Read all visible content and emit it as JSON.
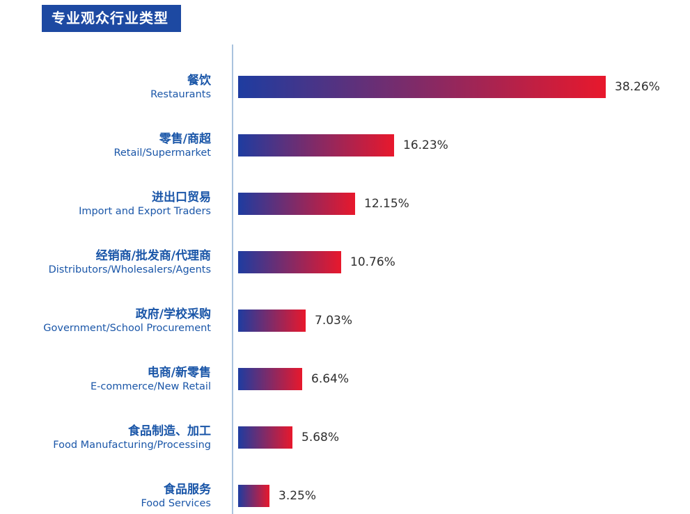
{
  "page": {
    "title": "专业观众行业类型"
  },
  "chart_data": {
    "type": "bar",
    "orientation": "horizontal",
    "title": "专业观众行业类型",
    "xlabel": "",
    "ylabel": "",
    "xlim": [
      0,
      40
    ],
    "grid": false,
    "legend": "none",
    "bar_gradient_start": "#1e3ca0",
    "bar_gradient_end": "#e8182c",
    "title_bg_color": "#1d49a2",
    "title_text_color": "#ffffff",
    "label_color": "#1a56a8",
    "value_color": "#2e2e2e",
    "axis_color": "#a9c3de",
    "rows": [
      {
        "label_zh": "餐饮",
        "label_en": "Restaurants",
        "value": 38.26,
        "value_label": "38.26%"
      },
      {
        "label_zh": "零售/商超",
        "label_en": "Retail/Supermarket",
        "value": 16.23,
        "value_label": "16.23%"
      },
      {
        "label_zh": "进出口贸易",
        "label_en": "Import and Export Traders",
        "value": 12.15,
        "value_label": "12.15%"
      },
      {
        "label_zh": "经销商/批发商/代理商",
        "label_en": "Distributors/Wholesalers/Agents",
        "value": 10.76,
        "value_label": "10.76%"
      },
      {
        "label_zh": "政府/学校采购",
        "label_en": "Government/School Procurement",
        "value": 7.03,
        "value_label": "7.03%"
      },
      {
        "label_zh": "电商/新零售",
        "label_en": "E-commerce/New Retail",
        "value": 6.64,
        "value_label": "6.64%"
      },
      {
        "label_zh": "食品制造、加工",
        "label_en": "Food Manufacturing/Processing",
        "value": 5.68,
        "value_label": "5.68%"
      },
      {
        "label_zh": "食品服务",
        "label_en": "Food Services",
        "value": 3.25,
        "value_label": "3.25%"
      }
    ]
  }
}
